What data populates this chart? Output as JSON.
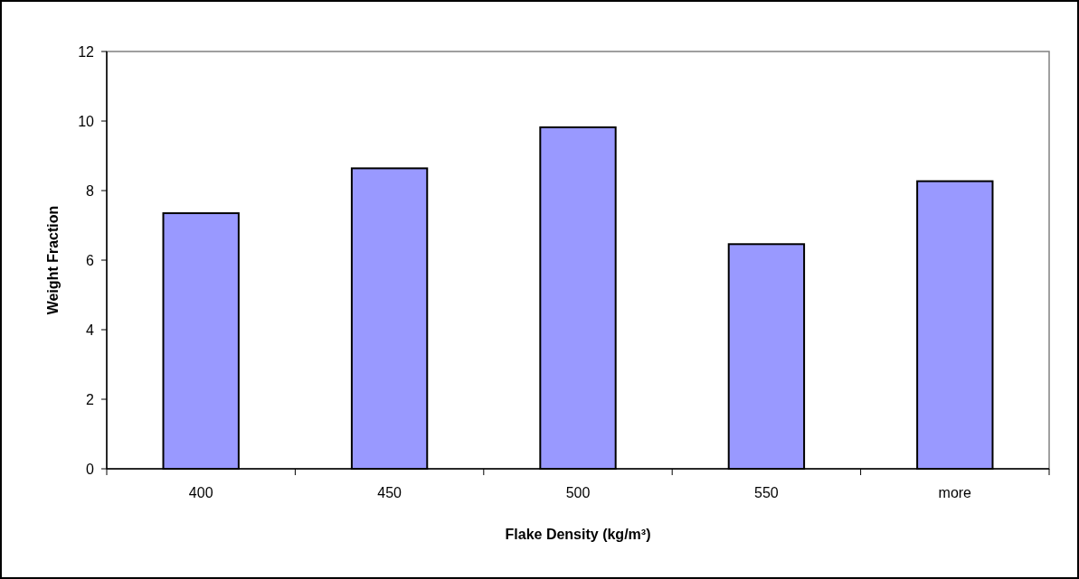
{
  "chart_data": {
    "type": "bar",
    "xlabel": "Flake Density (kg/m³)",
    "ylabel": "Weight Fraction",
    "categories": [
      "400",
      "450",
      "500",
      "550",
      "more"
    ],
    "values": [
      7.35,
      8.64,
      9.82,
      6.46,
      8.27
    ],
    "color": "#9999ff",
    "ylim": [
      0,
      12
    ],
    "yticks": [
      0,
      2,
      4,
      6,
      8,
      10,
      12
    ],
    "grid": false
  }
}
